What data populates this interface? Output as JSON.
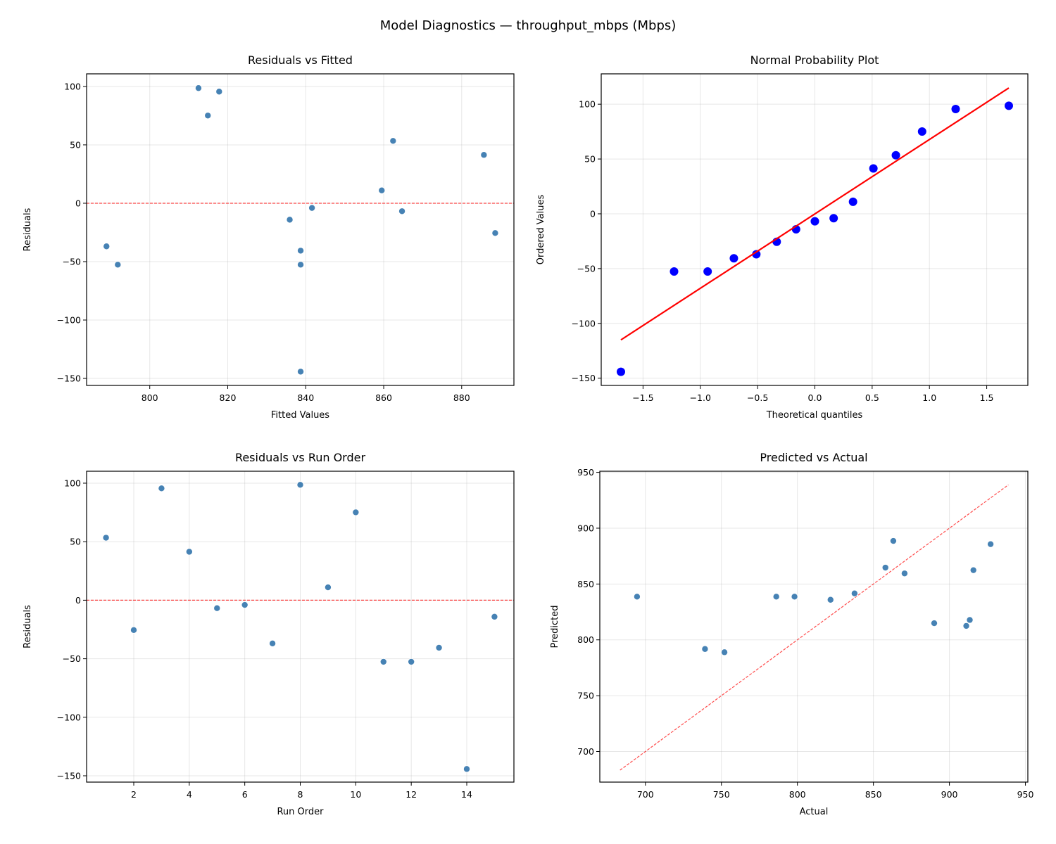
{
  "figure_title": "Model Diagnostics — throughput_mbps (Mbps)",
  "chart_data": [
    {
      "type": "scatter",
      "title": "Residuals vs Fitted",
      "xlabel": "Fitted Values",
      "ylabel": "Residuals",
      "xlim": [
        783.8,
        893.4
      ],
      "ylim": [
        -156.0,
        110.8
      ],
      "grid": true,
      "xticks": [
        {
          "v": 800,
          "label": "800"
        },
        {
          "v": 820,
          "label": "820"
        },
        {
          "v": 840,
          "label": "840"
        },
        {
          "v": 860,
          "label": "860"
        },
        {
          "v": 880,
          "label": "880"
        }
      ],
      "yticks": [
        {
          "v": -150,
          "label": "−150"
        },
        {
          "v": -100,
          "label": "−100"
        },
        {
          "v": -50,
          "label": "−50"
        },
        {
          "v": 0,
          "label": "0"
        },
        {
          "v": 50,
          "label": "50"
        },
        {
          "v": 100,
          "label": "100"
        }
      ],
      "x": [
        862.4,
        888.6,
        817.8,
        885.7,
        864.7,
        841.6,
        788.9,
        812.5,
        859.5,
        814.9,
        791.8,
        838.7,
        838.7,
        838.7,
        835.9
      ],
      "y": [
        53.4,
        -25.5,
        95.6,
        41.4,
        -6.8,
        -4.0,
        -36.9,
        98.6,
        11.0,
        75.1,
        -52.6,
        -52.6,
        -40.6,
        -144.2,
        -14.1
      ],
      "marker_color": "#4682b4",
      "hline": {
        "y": 0,
        "color": "#ff0000",
        "style": "dashed"
      }
    },
    {
      "type": "scatter",
      "title": "Normal Probability Plot",
      "xlabel": "Theoretical quantiles",
      "ylabel": "Ordered Values",
      "xlim": [
        -1.865,
        1.859
      ],
      "ylim": [
        -156.6,
        127.7
      ],
      "grid": true,
      "xticks": [
        {
          "v": -1.5,
          "label": "−1.5"
        },
        {
          "v": -1.0,
          "label": "−1.0"
        },
        {
          "v": -0.5,
          "label": "−0.5"
        },
        {
          "v": 0,
          "label": "0.0"
        },
        {
          "v": 0.5,
          "label": "0.5"
        },
        {
          "v": 1.0,
          "label": "1.0"
        },
        {
          "v": 1.5,
          "label": "1.5"
        }
      ],
      "yticks": [
        {
          "v": -150,
          "label": "−150"
        },
        {
          "v": -100,
          "label": "−100"
        },
        {
          "v": -50,
          "label": "−50"
        },
        {
          "v": 0,
          "label": "0"
        },
        {
          "v": 50,
          "label": "50"
        },
        {
          "v": 100,
          "label": "100"
        }
      ],
      "x": [
        -1.693,
        -1.229,
        -0.936,
        -0.707,
        -0.511,
        -0.333,
        -0.164,
        0,
        0.164,
        0.333,
        0.511,
        0.707,
        0.936,
        1.229,
        1.693
      ],
      "y": [
        -144.2,
        -52.6,
        -52.6,
        -40.6,
        -36.9,
        -25.5,
        -14.1,
        -6.8,
        -4.0,
        11.0,
        41.4,
        53.4,
        75.1,
        95.6,
        98.6
      ],
      "marker_color": "#0000ff",
      "fit_line": {
        "slope": 67.9,
        "intercept": -0.1,
        "color": "#ff0000"
      }
    },
    {
      "type": "scatter",
      "title": "Residuals vs Run Order",
      "xlabel": "Run Order",
      "ylabel": "Residuals",
      "xlim": [
        0.3,
        15.7
      ],
      "ylim": [
        -155.4,
        110.2
      ],
      "grid": true,
      "xticks": [
        {
          "v": 2,
          "label": "2"
        },
        {
          "v": 4,
          "label": "4"
        },
        {
          "v": 6,
          "label": "6"
        },
        {
          "v": 8,
          "label": "8"
        },
        {
          "v": 10,
          "label": "10"
        },
        {
          "v": 12,
          "label": "12"
        },
        {
          "v": 14,
          "label": "14"
        }
      ],
      "yticks": [
        {
          "v": -150,
          "label": "−150"
        },
        {
          "v": -100,
          "label": "−100"
        },
        {
          "v": -50,
          "label": "−50"
        },
        {
          "v": 0,
          "label": "0"
        },
        {
          "v": 50,
          "label": "50"
        },
        {
          "v": 100,
          "label": "100"
        }
      ],
      "x": [
        1,
        2,
        3,
        4,
        5,
        6,
        7,
        8,
        9,
        10,
        11,
        12,
        13,
        14,
        15
      ],
      "y": [
        53.4,
        -25.5,
        95.6,
        41.4,
        -6.8,
        -4.0,
        -36.9,
        98.6,
        11.0,
        75.1,
        -52.6,
        -52.6,
        -40.6,
        -144.2,
        -14.1
      ],
      "marker_color": "#4682b4",
      "hline": {
        "y": 0,
        "color": "#ff0000",
        "style": "dashed"
      }
    },
    {
      "type": "scatter",
      "title": "Predicted vs Actual",
      "xlabel": "Actual",
      "ylabel": "Predicted",
      "xlim": [
        670,
        951.6
      ],
      "ylim": [
        672.6,
        951
      ],
      "grid": true,
      "xticks": [
        {
          "v": 700,
          "label": "700"
        },
        {
          "v": 750,
          "label": "750"
        },
        {
          "v": 800,
          "label": "800"
        },
        {
          "v": 850,
          "label": "850"
        },
        {
          "v": 900,
          "label": "900"
        },
        {
          "v": 950,
          "label": "950"
        }
      ],
      "yticks": [
        {
          "v": 700,
          "label": "700"
        },
        {
          "v": 750,
          "label": "750"
        },
        {
          "v": 800,
          "label": "800"
        },
        {
          "v": 850,
          "label": "850"
        },
        {
          "v": 900,
          "label": "900"
        },
        {
          "v": 950,
          "label": "950"
        }
      ],
      "x": [
        915.8,
        863.1,
        913.4,
        927.1,
        857.9,
        837.6,
        752.0,
        911.1,
        870.5,
        890.0,
        739.2,
        786.1,
        798.1,
        694.5,
        821.8
      ],
      "y": [
        862.4,
        888.6,
        817.8,
        885.7,
        864.7,
        841.6,
        788.9,
        812.5,
        859.5,
        814.9,
        791.8,
        838.7,
        838.7,
        838.7,
        835.9
      ],
      "marker_color": "#4682b4",
      "diag_line": {
        "from": 683.3,
        "to": 938.8,
        "color": "#ff0000",
        "style": "dashed"
      }
    }
  ]
}
